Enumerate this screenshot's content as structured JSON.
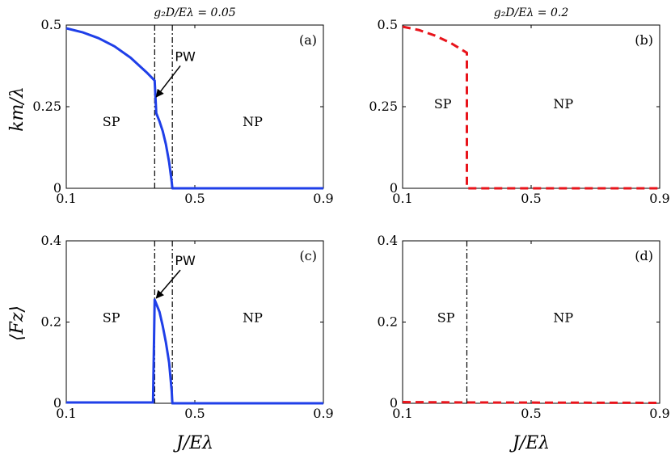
{
  "figure": {
    "titles": {
      "left": "g₂D/Eλ = 0.05",
      "right": "g₂D/Eλ = 0.2"
    },
    "xlabel": "J/Eλ",
    "ylabels": {
      "top": "km/λ",
      "bottom": "⟨Fz⟩"
    }
  },
  "chart_data": [
    {
      "id": "a",
      "type": "line",
      "panel_label": "(a)",
      "xlim": [
        0.1,
        0.9
      ],
      "ylim": [
        0,
        0.5
      ],
      "xticks": [
        0.1,
        0.5,
        0.9
      ],
      "xtick_labels": [
        "0.1",
        "0.5",
        "0.9"
      ],
      "yticks": [
        0,
        0.25,
        0.5
      ],
      "ytick_labels": [
        "0",
        "0.25",
        "0.5"
      ],
      "color": "#1f3fe8",
      "dash": "solid",
      "vlines": [
        0.375,
        0.43
      ],
      "regions": [
        {
          "text": "SP",
          "x": 0.24,
          "y": 0.19
        },
        {
          "text": "NP",
          "x": 0.68,
          "y": 0.19
        }
      ],
      "annotation": {
        "text": "PW",
        "tip": [
          0.375,
          0.275
        ],
        "label_at": [
          0.47,
          0.39
        ]
      },
      "series": [
        {
          "name": "k_m/lambda",
          "x": [
            0.1,
            0.15,
            0.2,
            0.25,
            0.3,
            0.35,
            0.375,
            0.38,
            0.39,
            0.4,
            0.41,
            0.42,
            0.428,
            0.43,
            0.9
          ],
          "y": [
            0.49,
            0.478,
            0.46,
            0.435,
            0.4,
            0.355,
            0.33,
            0.23,
            0.205,
            0.175,
            0.135,
            0.08,
            0.02,
            0.0,
            0.0
          ]
        }
      ]
    },
    {
      "id": "b",
      "type": "line",
      "panel_label": "(b)",
      "xlim": [
        0.1,
        0.9
      ],
      "ylim": [
        0,
        0.5
      ],
      "xticks": [
        0.1,
        0.5,
        0.9
      ],
      "xtick_labels": [
        "0.1",
        "0.5",
        "0.9"
      ],
      "yticks": [
        0,
        0.25,
        0.5
      ],
      "ytick_labels": [
        "0",
        "0.25",
        "0.5"
      ],
      "color": "#e8141b",
      "dash": "dashed",
      "vlines": [],
      "regions": [
        {
          "text": "SP",
          "x": 0.225,
          "y": 0.245
        },
        {
          "text": "NP",
          "x": 0.6,
          "y": 0.245
        }
      ],
      "annotation": null,
      "series": [
        {
          "name": "k_m/lambda",
          "x": [
            0.1,
            0.15,
            0.2,
            0.25,
            0.3,
            0.3,
            0.9
          ],
          "y": [
            0.495,
            0.485,
            0.468,
            0.445,
            0.415,
            0.0,
            0.0
          ]
        }
      ]
    },
    {
      "id": "c",
      "type": "line",
      "panel_label": "(c)",
      "xlim": [
        0.1,
        0.9
      ],
      "ylim": [
        0,
        0.4
      ],
      "xticks": [
        0.1,
        0.5,
        0.9
      ],
      "xtick_labels": [
        "0.1",
        "0.5",
        "0.9"
      ],
      "yticks": [
        0,
        0.2,
        0.4
      ],
      "ytick_labels": [
        "0",
        "0.2",
        "0.4"
      ],
      "color": "#1f3fe8",
      "dash": "solid",
      "vlines": [
        0.375,
        0.43
      ],
      "regions": [
        {
          "text": "SP",
          "x": 0.24,
          "y": 0.2
        },
        {
          "text": "NP",
          "x": 0.68,
          "y": 0.2
        }
      ],
      "annotation": {
        "text": "PW",
        "tip": [
          0.375,
          0.255
        ],
        "label_at": [
          0.47,
          0.34
        ]
      },
      "series": [
        {
          "name": "F_z",
          "x": [
            0.1,
            0.37,
            0.375,
            0.38,
            0.39,
            0.4,
            0.41,
            0.42,
            0.428,
            0.43,
            0.9
          ],
          "y": [
            0.002,
            0.002,
            0.255,
            0.245,
            0.225,
            0.19,
            0.15,
            0.1,
            0.03,
            0.0,
            0.0
          ]
        }
      ]
    },
    {
      "id": "d",
      "type": "line",
      "panel_label": "(d)",
      "xlim": [
        0.1,
        0.9
      ],
      "ylim": [
        0,
        0.4
      ],
      "xticks": [
        0.1,
        0.5,
        0.9
      ],
      "xtick_labels": [
        "0.1",
        "0.5",
        "0.9"
      ],
      "yticks": [
        0,
        0.2,
        0.4
      ],
      "ytick_labels": [
        "0",
        "0.2",
        "0.4"
      ],
      "color": "#e8141b",
      "dash": "dashed",
      "vlines": [
        0.3
      ],
      "regions": [
        {
          "text": "SP",
          "x": 0.235,
          "y": 0.2
        },
        {
          "text": "NP",
          "x": 0.6,
          "y": 0.2
        }
      ],
      "annotation": null,
      "series": [
        {
          "name": "F_z",
          "x": [
            0.1,
            0.3,
            0.9
          ],
          "y": [
            0.003,
            0.002,
            0.001
          ]
        }
      ]
    }
  ]
}
